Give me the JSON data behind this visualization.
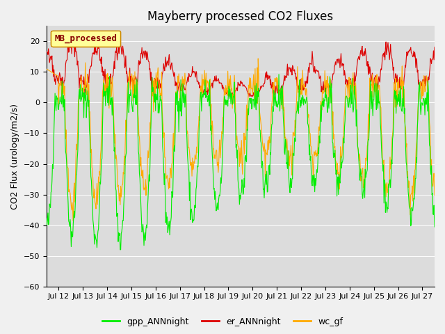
{
  "title": "Mayberry processed CO2 Fluxes",
  "ylabel": "CO2 Flux (urology/m2/s)",
  "ylim": [
    -60,
    25
  ],
  "yticks": [
    -60,
    -50,
    -40,
    -30,
    -20,
    -10,
    0,
    10,
    20
  ],
  "xtick_labels": [
    "Jul 12",
    "Jul 13",
    "Jul 14",
    "Jul 15",
    "Jul 16",
    "Jul 17",
    "Jul 18",
    "Jul 19",
    "Jul 20",
    "Jul 21",
    "Jul 22",
    "Jul 23",
    "Jul 24",
    "Jul 25",
    "Jul 26",
    "Jul 27"
  ],
  "legend_label": "MB_processed",
  "legend_facecolor": "#ffff99",
  "legend_edgecolor": "#cc8800",
  "legend_textcolor": "#880000",
  "gpp_color": "#00ee00",
  "er_color": "#dd0000",
  "wc_color": "#ffaa00",
  "bg_color": "#dcdcdc",
  "grid_color": "#ffffff",
  "fig_facecolor": "#f0f0f0",
  "legend_entries": [
    "gpp_ANNnight",
    "er_ANNnight",
    "wc_gf"
  ],
  "legend_colors": [
    "#00ee00",
    "#dd0000",
    "#ffaa00"
  ],
  "title_fontsize": 12,
  "axis_fontsize": 9,
  "tick_fontsize": 8
}
